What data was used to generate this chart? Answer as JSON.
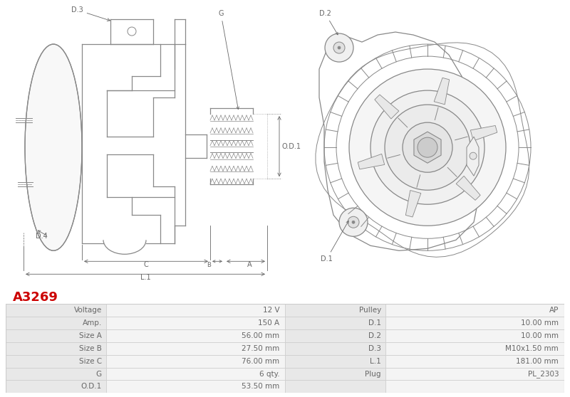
{
  "title": "A3269",
  "title_color": "#cc0000",
  "background_color": "#ffffff",
  "table_rows": [
    [
      "Voltage",
      "12 V",
      "Pulley",
      "AP"
    ],
    [
      "Amp.",
      "150 A",
      "D.1",
      "10.00 mm"
    ],
    [
      "Size A",
      "56.00 mm",
      "D.2",
      "10.00 mm"
    ],
    [
      "Size B",
      "27.50 mm",
      "D.3",
      "M10x1.50 mm"
    ],
    [
      "Size C",
      "76.00 mm",
      "L.1",
      "181.00 mm"
    ],
    [
      "G",
      "6 qty.",
      "Plug",
      "PL_2303"
    ],
    [
      "O.D.1",
      "53.50 mm",
      "",
      ""
    ]
  ],
  "table_text_color": "#666666",
  "table_label_bg": "#e8e8e8",
  "table_value_bg": "#f4f4f4",
  "border_color": "#cccccc",
  "line_color": "#888888",
  "dim_color": "#666666"
}
